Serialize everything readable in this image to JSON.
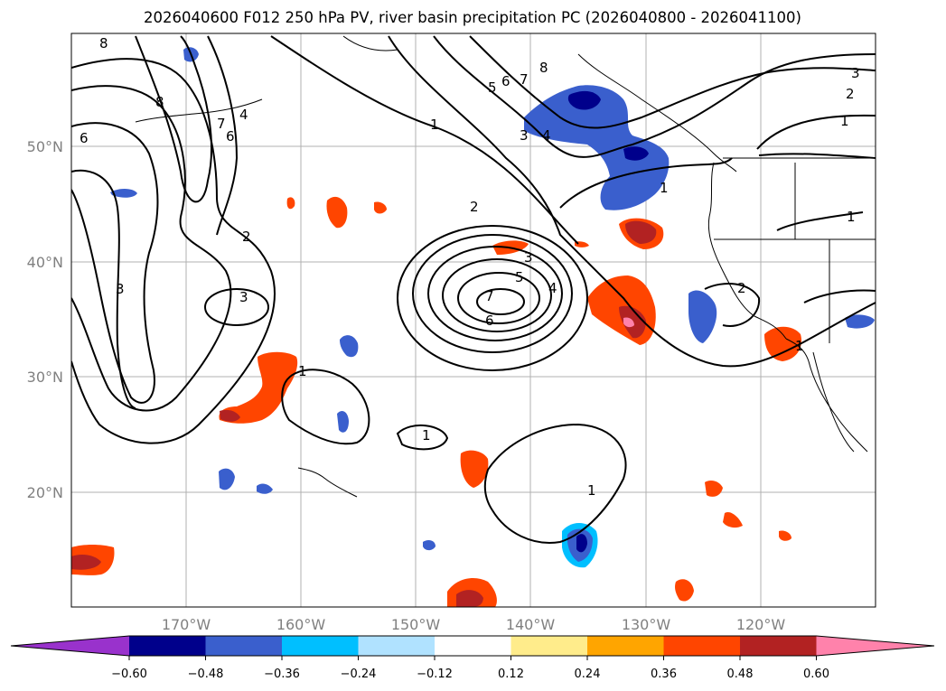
{
  "title": "2026040600 F012 250 hPa PV, river basin precipitation PC (2026040800 - 2026041100)",
  "lat_labels": [
    "50°N",
    "40°N",
    "30°N",
    "20°N"
  ],
  "lon_labels": [
    "170°W",
    "160°W",
    "150°W",
    "140°W",
    "130°W",
    "120°W"
  ],
  "colorbar": {
    "ticks": [
      "−0.60",
      "−0.48",
      "−0.36",
      "−0.24",
      "−0.12",
      "0.12",
      "0.24",
      "0.36",
      "0.48",
      "0.60"
    ],
    "colors": [
      "#9932cc",
      "#00008b",
      "#3a5fcd",
      "#00bfff",
      "#b0e2ff",
      "#ffffff",
      "#ffec8b",
      "#ffa500",
      "#ff4500",
      "#b22222",
      "#ff82ab"
    ]
  },
  "contour_labels": [
    "8",
    "8",
    "7",
    "4",
    "6",
    "6",
    "2",
    "3",
    "3",
    "1",
    "5",
    "6",
    "7",
    "8",
    "3",
    "4",
    "2",
    "3",
    "5",
    "4",
    "7",
    "6",
    "1",
    "1",
    "1",
    "2",
    "1",
    "1",
    "3",
    "2",
    "1",
    "1"
  ]
}
